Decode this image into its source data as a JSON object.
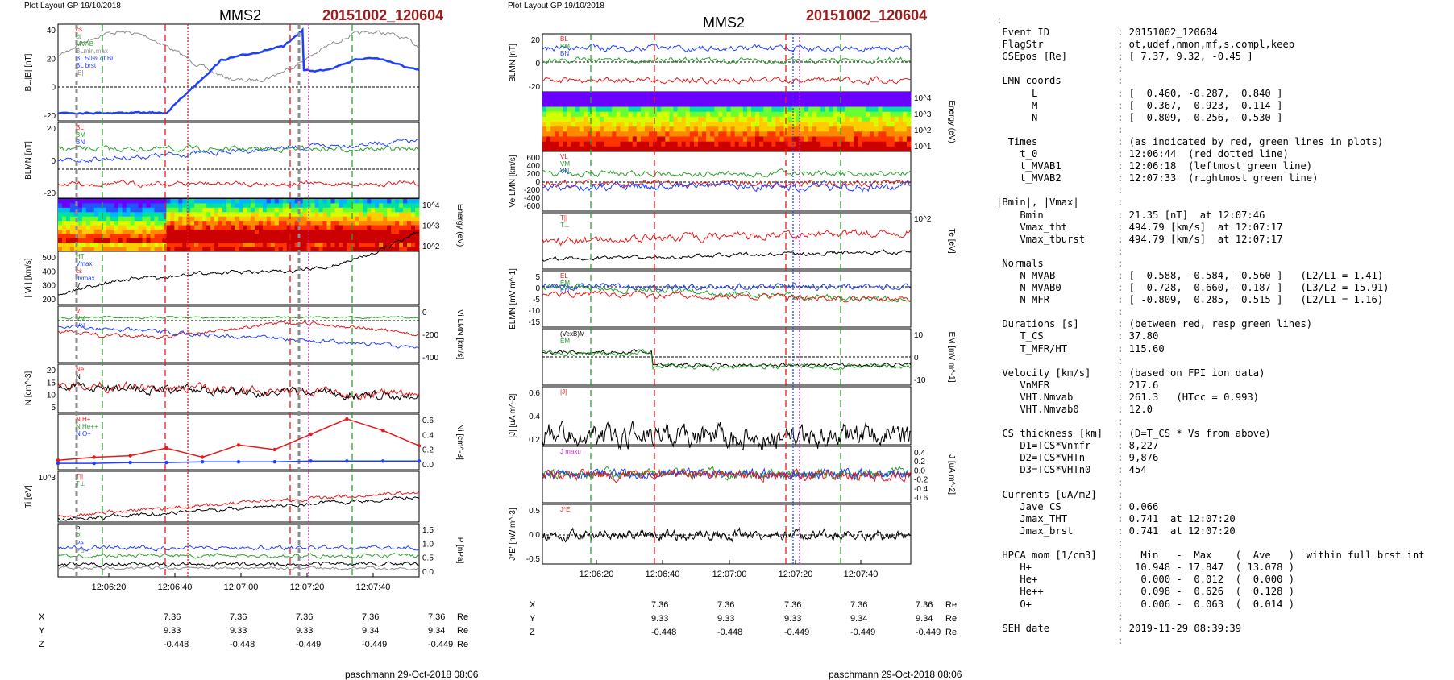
{
  "left_header": {
    "layout_label": "Plot Layout GP 19/10/2018",
    "spacecraft": "MMS2",
    "event": "20151002_120604"
  },
  "mid_header": {
    "layout_label": "Plot Layout GP 19/10/2018",
    "spacecraft": "MMS2",
    "event": "20151002_120604"
  },
  "left_footer": "paschmann 29-Oct-2018 08:06",
  "mid_footer": "paschmann 29-Oct-2018 08:06",
  "time_ticks": [
    "12:06:20",
    "12:06:40",
    "12:07:00",
    "12:07:20",
    "12:07:40"
  ],
  "coords": {
    "labels": [
      "X",
      "Y",
      "Z"
    ],
    "unit": "Re",
    "X": [
      "7.36",
      "7.36",
      "7.36",
      "7.36",
      "7.36"
    ],
    "Y": [
      "9.33",
      "9.33",
      "9.33",
      "9.34",
      "9.34"
    ],
    "Z": [
      "-0.448",
      "-0.448",
      "-0.449",
      "-0.449",
      "-0.449"
    ]
  },
  "colors": {
    "red": "#e41a1c",
    "green": "#2ca02c",
    "blue": "#1f3fff",
    "black": "#000000",
    "magenta": "#d11fd1",
    "gray": "#8c8c8c",
    "darkred": "#9b1b1b"
  },
  "chart_data": [
    {
      "type": "line",
      "panel": "left-1",
      "ylabel": "BL,|B| [nT]",
      "yticks": [
        "40",
        "20",
        "0",
        "-20"
      ],
      "ylim": [
        -35,
        45
      ],
      "legend": [
        "cs",
        "ct",
        "MVAB",
        "BLmin,max",
        "BL 50% of BL",
        "BL brst",
        "|B|"
      ]
    },
    {
      "type": "line",
      "panel": "left-2",
      "ylabel": "BLMN [nT]",
      "yticks": [
        "20",
        "0",
        "-20"
      ],
      "legend": [
        "BL",
        "BM",
        "BN"
      ],
      "series_labels": [
        "BL",
        "BM",
        "BN"
      ]
    },
    {
      "type": "heatmap",
      "panel": "left-3",
      "ylabel": "Energy (eV)",
      "yticks": [
        "10^4",
        "10^3",
        "10^2"
      ]
    },
    {
      "type": "line",
      "panel": "left-4",
      "ylabel": "| Vi | [km/s]",
      "yticks": [
        "500",
        "400",
        "300",
        "200"
      ],
      "legend": [
        "HT",
        "Vmax",
        "cs",
        "dvmax",
        "V"
      ]
    },
    {
      "type": "line",
      "panel": "left-5",
      "ylabel": "Vi LMN [km/s]",
      "yticks": [
        "0",
        "-200",
        "-400"
      ],
      "series_labels": [
        "VL",
        "VM",
        "VN"
      ]
    },
    {
      "type": "line",
      "panel": "left-6",
      "ylabel": "N [cm^-3]",
      "yticks": [
        "20",
        "15",
        "10",
        "5"
      ],
      "legend": [
        "Ne",
        "Ni"
      ]
    },
    {
      "type": "line",
      "panel": "left-7",
      "ylabel": "Ni [cm^-3]",
      "yticks": [
        "0.6",
        "0.4",
        "0.2",
        "0.0"
      ],
      "legend": [
        "N H+",
        "N He++",
        "N O+"
      ],
      "series": [
        {
          "name": "N He++",
          "values": [
            0.06,
            0.1,
            0.12,
            0.22,
            0.1,
            0.26,
            0.2,
            0.4,
            0.6,
            0.45,
            0.25
          ]
        },
        {
          "name": "N O+",
          "values": [
            0.02,
            0.02,
            0.03,
            0.03,
            0.04,
            0.04,
            0.04,
            0.05,
            0.05,
            0.05,
            0.05
          ]
        }
      ]
    },
    {
      "type": "line",
      "panel": "left-8",
      "ylabel": "Ti [eV]",
      "yticks": [
        "10^3"
      ],
      "series_labels": [
        "T||",
        "T⊥"
      ]
    },
    {
      "type": "line",
      "panel": "left-9",
      "ylabel": "P [nPa]",
      "yticks": [
        "1.5",
        "1.0",
        "0.5",
        "0.0"
      ],
      "series_labels": [
        "P",
        "Pi",
        "Pe",
        "PB"
      ]
    },
    {
      "type": "line",
      "panel": "mid-1",
      "ylabel": "BLMN [nT]",
      "yticks": [
        "20",
        "0",
        "-20"
      ],
      "series_labels": [
        "BL",
        "BM",
        "BN"
      ]
    },
    {
      "type": "heatmap",
      "panel": "mid-2",
      "ylabel": "Energy (eV)",
      "yticks": [
        "10^4",
        "10^3",
        "10^2",
        "10^1"
      ]
    },
    {
      "type": "line",
      "panel": "mid-3",
      "ylabel": "Ve LMN [km/s]",
      "yticks": [
        "600",
        "400",
        "200",
        "0",
        "-200",
        "-400",
        "-600"
      ],
      "series_labels": [
        "VL",
        "VM",
        "VN"
      ]
    },
    {
      "type": "line",
      "panel": "mid-4",
      "ylabel": "Te [eV]",
      "yticks": [
        "10^2"
      ],
      "series_labels": [
        "T||",
        "T⊥"
      ]
    },
    {
      "type": "line",
      "panel": "mid-5",
      "ylabel": "ELMN [mV m^-1]",
      "yticks": [
        "5",
        "0",
        "-5",
        "-10",
        "-15"
      ],
      "series_labels": [
        "EL",
        "EM",
        "EN"
      ]
    },
    {
      "type": "line",
      "panel": "mid-6",
      "ylabel": "EM [mV m^-1]",
      "yticks": [
        "10",
        "0",
        "-10"
      ],
      "legend": [
        "(VexB)M",
        "EM"
      ]
    },
    {
      "type": "line",
      "panel": "mid-7",
      "ylabel": "|J| [uA m^-2]",
      "yticks": [
        "0.6",
        "0.4",
        "0.2"
      ],
      "legend": [
        "|J|"
      ]
    },
    {
      "type": "line",
      "panel": "mid-8",
      "ylabel": "J [uA m^-2]",
      "yticks": [
        "0.4",
        "0.2",
        "0.0",
        "-0.2",
        "-0.4",
        "-0.6"
      ],
      "legend": [
        "J maxu"
      ]
    },
    {
      "type": "line",
      "panel": "mid-9",
      "ylabel": "J*E' [nW m^-3]",
      "yticks": [
        "0.5",
        "0.0",
        "-0.5"
      ],
      "legend": [
        "J*E'"
      ]
    }
  ],
  "info": [
    {
      "k": ":",
      "v": ""
    },
    {
      "k": " Event ID",
      "v": ": 20151002_120604"
    },
    {
      "k": " FlagStr",
      "v": ": ot,udef,nmon,mf,s,compl,keep"
    },
    {
      "k": " GSEpos [Re]",
      "v": ": [ 7.37, 9.32, -0.45 ]"
    },
    {
      "k": "",
      "v": ":"
    },
    {
      "k": " LMN coords",
      "v": ":"
    },
    {
      "k": "      L",
      "v": ": [  0.460, -0.287,  0.840 ]"
    },
    {
      "k": "      M",
      "v": ": [  0.367,  0.923,  0.114 ]"
    },
    {
      "k": "      N",
      "v": ": [  0.809, -0.256, -0.530 ]"
    },
    {
      "k": "",
      "v": ":"
    },
    {
      "k": "  Times",
      "v": ": (as indicated by red, green lines in plots)"
    },
    {
      "k": "    t_0",
      "v": ": 12:06:44  (red dotted line)"
    },
    {
      "k": "    t_MVAB1",
      "v": ": 12:06:18  (leftmost green line)"
    },
    {
      "k": "    t_MVAB2",
      "v": ": 12:07:33  (rightmost green line)"
    },
    {
      "k": "",
      "v": ":"
    },
    {
      "k": "|Bmin|, |Vmax|",
      "v": ":"
    },
    {
      "k": "    Bmin",
      "v": ": 21.35 [nT]  at 12:07:46"
    },
    {
      "k": "    Vmax_tht",
      "v": ": 494.79 [km/s]  at 12:07:17"
    },
    {
      "k": "    Vmax_tburst",
      "v": ": 494.79 [km/s]  at 12:07:17"
    },
    {
      "k": "",
      "v": ":"
    },
    {
      "k": " Normals",
      "v": ":"
    },
    {
      "k": "    N MVAB",
      "v": ": [  0.588, -0.584, -0.560 ]   (L2/L1 = 1.41)"
    },
    {
      "k": "    N MVAB0",
      "v": ": [  0.728,  0.660, -0.187 ]   (L3/L2 = 15.91)"
    },
    {
      "k": "    N MFR",
      "v": ": [ -0.809,  0.285,  0.515 ]   (L2/L1 = 1.16)"
    },
    {
      "k": "",
      "v": ":"
    },
    {
      "k": " Durations [s]",
      "v": ": (between red, resp green lines)"
    },
    {
      "k": "    T_CS",
      "v": ": 37.80"
    },
    {
      "k": "    T_MFR/HT",
      "v": ": 115.60"
    },
    {
      "k": "",
      "v": ":"
    },
    {
      "k": " Velocity [km/s]",
      "v": ": (based on FPI ion data)"
    },
    {
      "k": "    VnMFR",
      "v": ": 217.6"
    },
    {
      "k": "    VHT.Nmvab",
      "v": ": 261.3   (HTcc = 0.993)"
    },
    {
      "k": "    VHT.Nmvab0",
      "v": ": 12.0"
    },
    {
      "k": "",
      "v": ":"
    },
    {
      "k": " CS thickness [km]",
      "v": ": (D=T_CS * Vs from above)"
    },
    {
      "k": "    D1=TCS*Vnmfr",
      "v": ": 8,227"
    },
    {
      "k": "    D2=TCS*VHTn",
      "v": ": 9,876"
    },
    {
      "k": "    D3=TCS*VHTn0",
      "v": ": 454"
    },
    {
      "k": "",
      "v": ":"
    },
    {
      "k": " Currents [uA/m2]",
      "v": ":"
    },
    {
      "k": "    Jave_CS",
      "v": ": 0.066"
    },
    {
      "k": "    Jmax_THT",
      "v": ": 0.741  at 12:07:20"
    },
    {
      "k": "    Jmax_brst",
      "v": ": 0.741  at 12:07:20"
    },
    {
      "k": "",
      "v": ":"
    },
    {
      "k": " HPCA mom [1/cm3]",
      "v": ":   Min   -  Max    (  Ave   )  within full brst int"
    },
    {
      "k": "    H+",
      "v": ":  10.948 - 17.847  ( 13.078 )"
    },
    {
      "k": "    He+",
      "v": ":   0.000 -  0.012  (  0.000 )"
    },
    {
      "k": "    He++",
      "v": ":   0.098 -  0.626  (  0.128 )"
    },
    {
      "k": "    O+",
      "v": ":   0.006 -  0.063  (  0.014 )"
    },
    {
      "k": "",
      "v": ":"
    },
    {
      "k": " SEH date",
      "v": ": 2019-11-29 08:39:39"
    },
    {
      "k": "",
      "v": ":"
    }
  ]
}
